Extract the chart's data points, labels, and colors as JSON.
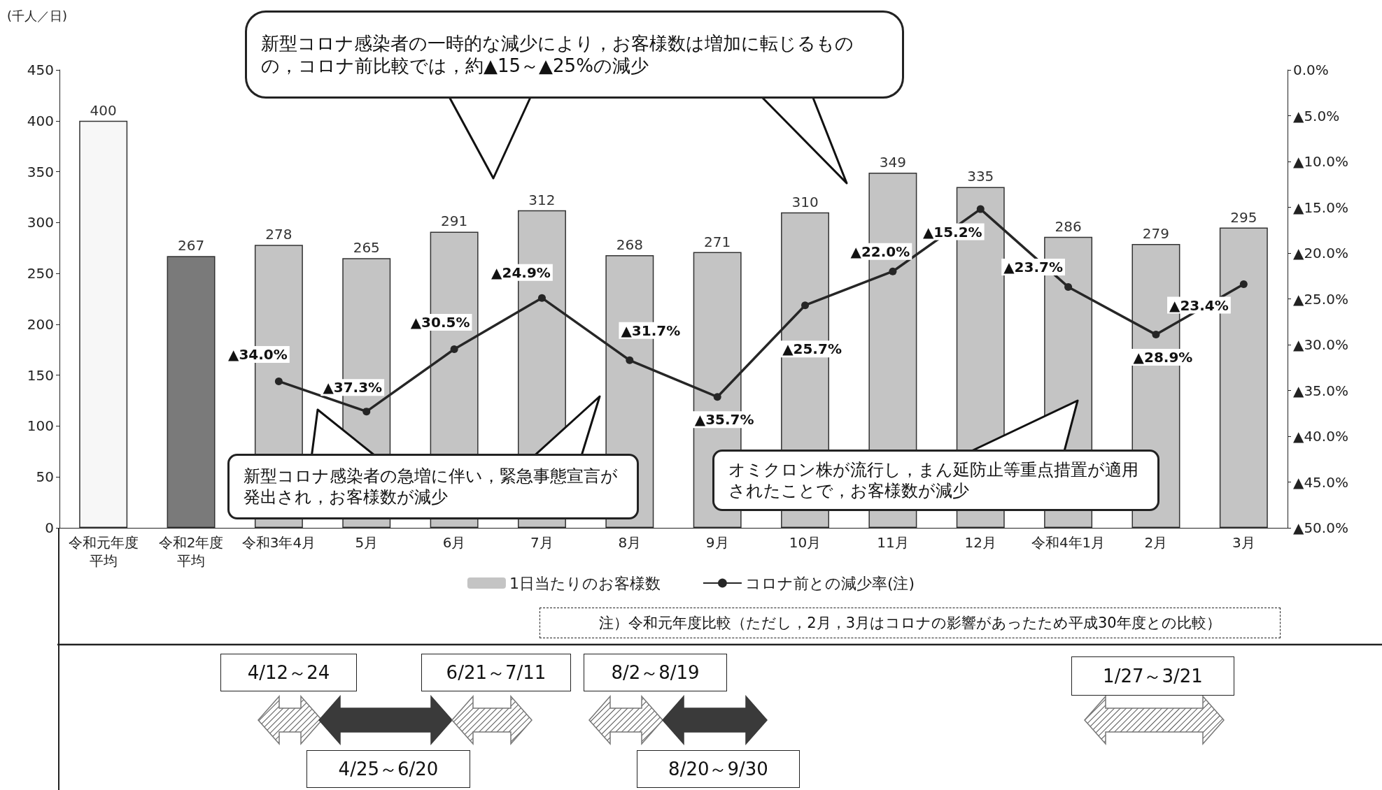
{
  "chart_data": {
    "type": "bar",
    "ylabel": "(千人／日)",
    "categories": [
      "令和元年度平均",
      "令和2年度平均",
      "令和3年4月",
      "5月",
      "6月",
      "7月",
      "8月",
      "9月",
      "10月",
      "11月",
      "12月",
      "令和4年1月",
      "2月",
      "3月"
    ],
    "series": [
      {
        "name": "1日当たりのお客様数",
        "colors": [
          "#f7f7f7",
          "#7a7a7a",
          "#c4c4c4",
          "#c4c4c4",
          "#c4c4c4",
          "#c4c4c4",
          "#c4c4c4",
          "#c4c4c4",
          "#c4c4c4",
          "#c4c4c4",
          "#c4c4c4",
          "#c4c4c4",
          "#c4c4c4",
          "#c4c4c4"
        ],
        "values": [
          400,
          267,
          278,
          265,
          291,
          312,
          268,
          271,
          310,
          349,
          335,
          286,
          279,
          295
        ],
        "data_labels": true
      },
      {
        "name": "コロナ前との減少率(注)",
        "type": "line",
        "axis": "y2",
        "color": "#262626",
        "marker": "circle",
        "line_style": "solid",
        "values": [
          null,
          null,
          34.0,
          37.3,
          30.5,
          24.9,
          31.7,
          35.7,
          25.7,
          22.0,
          15.2,
          23.7,
          28.9,
          23.4
        ],
        "value_labels": [
          null,
          null,
          "▲34.0%",
          "▲37.3%",
          "▲30.5%",
          "▲24.9%",
          "▲31.7%",
          "▲35.7%",
          "▲25.7%",
          "▲22.0%",
          "▲15.2%",
          "▲23.7%",
          "▲28.9%",
          "▲23.4%"
        ]
      }
    ],
    "ylim": [
      0,
      450
    ],
    "yticks": [
      0,
      50,
      100,
      150,
      200,
      250,
      300,
      350,
      400,
      450
    ],
    "y2lim": [
      50,
      0
    ],
    "y2ticks": [
      {
        "value": 0,
        "label": "0.0%"
      },
      {
        "value": 5,
        "label": "▲5.0%"
      },
      {
        "value": 10,
        "label": "▲10.0%"
      },
      {
        "value": 15,
        "label": "▲15.0%"
      },
      {
        "value": 20,
        "label": "▲20.0%"
      },
      {
        "value": 25,
        "label": "▲25.0%"
      },
      {
        "value": 30,
        "label": "▲30.0%"
      },
      {
        "value": 35,
        "label": "▲35.0%"
      },
      {
        "value": 40,
        "label": "▲40.0%"
      },
      {
        "value": 45,
        "label": "▲45.0%"
      },
      {
        "value": 50,
        "label": "▲50.0%"
      }
    ],
    "grid": false,
    "legend": "bottom",
    "annotations": [
      "新型コロナ感染者の一時的な減少により，お客様数は増加に転じるものの，コロナ前比較では，約▲15～▲25%の減少",
      "新型コロナ感染者の急増に伴い，緊急事態宣言が発出され，お客様数が減少",
      "オミクロン株が流行し，まん延防止等重点措置が適用されたことで，お客様数が減少",
      "注）令和元年度比較（ただし，2月，3月はコロナの影響があったため平成30年度との比較）",
      "4/12～24",
      "4/25～6/20",
      "6/21～7/11",
      "8/2～8/19",
      "8/20～9/30",
      "1/27～3/21"
    ]
  }
}
